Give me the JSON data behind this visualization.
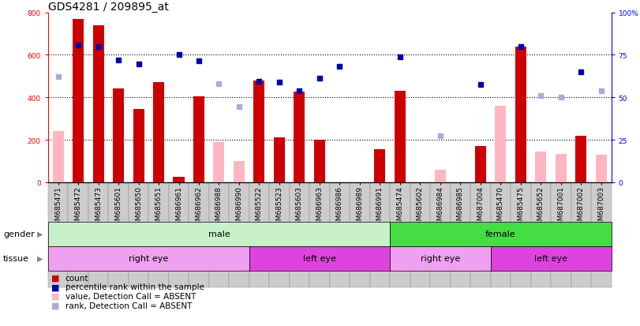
{
  "title": "GDS4281 / 209895_at",
  "samples": [
    "GSM685471",
    "GSM685472",
    "GSM685473",
    "GSM685601",
    "GSM685650",
    "GSM685651",
    "GSM686961",
    "GSM686962",
    "GSM686988",
    "GSM686990",
    "GSM685522",
    "GSM685523",
    "GSM685603",
    "GSM686963",
    "GSM686986",
    "GSM686989",
    "GSM686991",
    "GSM685474",
    "GSM685602",
    "GSM686984",
    "GSM686985",
    "GSM687004",
    "GSM685470",
    "GSM685475",
    "GSM685652",
    "GSM687001",
    "GSM687002",
    "GSM687003"
  ],
  "count_present": [
    null,
    770,
    740,
    440,
    345,
    470,
    25,
    405,
    null,
    null,
    480,
    210,
    425,
    200,
    null,
    null,
    155,
    430,
    null,
    null,
    null,
    170,
    null,
    640,
    null,
    null,
    220,
    null
  ],
  "count_absent": [
    240,
    null,
    null,
    null,
    null,
    null,
    null,
    null,
    190,
    100,
    null,
    null,
    null,
    null,
    null,
    null,
    null,
    null,
    null,
    60,
    null,
    null,
    360,
    null,
    145,
    135,
    null,
    130
  ],
  "rank_present": [
    null,
    645,
    640,
    575,
    558,
    null,
    600,
    570,
    null,
    null,
    475,
    470,
    430,
    490,
    545,
    null,
    null,
    590,
    null,
    null,
    null,
    460,
    null,
    640,
    null,
    null,
    520,
    null
  ],
  "rank_absent": [
    498,
    null,
    null,
    null,
    null,
    null,
    null,
    null,
    465,
    355,
    null,
    null,
    null,
    null,
    null,
    null,
    null,
    null,
    null,
    220,
    null,
    null,
    null,
    null,
    410,
    400,
    null,
    430
  ],
  "gender_groups": [
    {
      "label": "male",
      "start": 0,
      "end": 17,
      "color": "#c8f0c8"
    },
    {
      "label": "female",
      "start": 17,
      "end": 28,
      "color": "#44dd44"
    }
  ],
  "tissue_groups": [
    {
      "label": "right eye",
      "start": 0,
      "end": 10,
      "color": "#f0a0f0"
    },
    {
      "label": "left eye",
      "start": 10,
      "end": 17,
      "color": "#dd44dd"
    },
    {
      "label": "right eye",
      "start": 17,
      "end": 22,
      "color": "#f0a0f0"
    },
    {
      "label": "left eye",
      "start": 22,
      "end": 28,
      "color": "#dd44dd"
    }
  ],
  "ylim_left": [
    0,
    800
  ],
  "ylim_right": [
    0,
    100
  ],
  "count_present_color": "#cc0000",
  "count_absent_color": "#ffb6c1",
  "rank_present_color": "#0000aa",
  "rank_absent_color": "#aaaadd",
  "background_color": "#ffffff",
  "title_fontsize": 10,
  "tick_fontsize": 6.5,
  "label_fontsize": 7.5,
  "bar_width": 0.55,
  "marker_size": 5
}
